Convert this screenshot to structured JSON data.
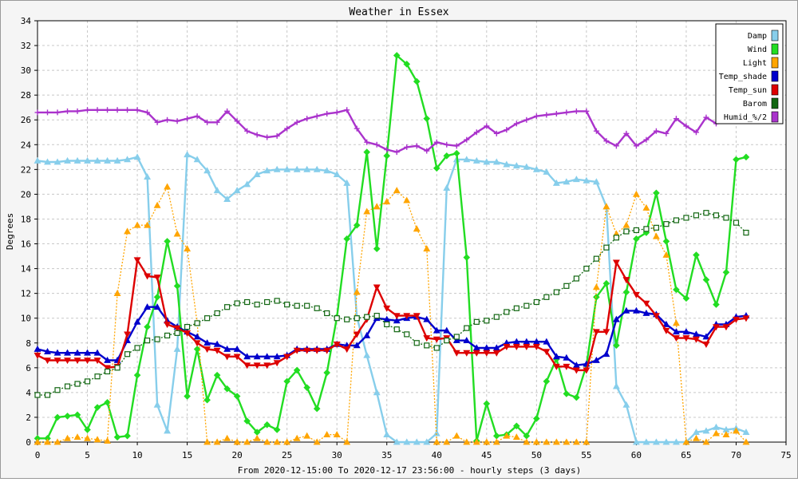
{
  "chart_data": {
    "type": "line",
    "title": "Weather in Essex",
    "ylabel": "Degrees",
    "xlabel": "From 2020-12-15:00 To 2020-12-17 23:56:00 - hourly steps (3 days)",
    "xlim": [
      0,
      75
    ],
    "ylim": [
      0,
      34
    ],
    "xticks": [
      0,
      5,
      10,
      15,
      20,
      25,
      30,
      35,
      40,
      45,
      50,
      55,
      60,
      65,
      70,
      75
    ],
    "yticks": [
      0,
      2,
      4,
      6,
      8,
      10,
      12,
      14,
      16,
      18,
      20,
      22,
      24,
      26,
      28,
      30,
      32,
      34
    ],
    "grid": true,
    "legend_position": "top-right",
    "series": [
      {
        "name": "Damp",
        "color": "#87ceeb",
        "marker": "triangle",
        "line": "solid",
        "values": [
          22.7,
          22.6,
          22.6,
          22.7,
          22.7,
          22.7,
          22.7,
          22.7,
          22.7,
          22.8,
          23.0,
          21.4,
          3.0,
          0.9,
          7.5,
          23.2,
          22.8,
          21.9,
          20.3,
          19.6,
          20.3,
          20.8,
          21.6,
          21.9,
          22.0,
          22.0,
          22.0,
          22.0,
          22.0,
          21.9,
          21.6,
          20.9,
          10.1,
          7.0,
          4.0,
          0.6,
          0.0,
          0.0,
          0.0,
          0.0,
          0.7,
          20.5,
          22.8,
          22.8,
          22.7,
          22.6,
          22.6,
          22.4,
          22.3,
          22.2,
          22.0,
          21.8,
          20.9,
          21.0,
          21.2,
          21.1,
          21.0,
          19.0,
          4.5,
          3.0,
          0.0,
          0.0,
          0.0,
          0.0,
          0.0,
          0.0,
          0.8,
          0.9,
          1.2,
          1.0,
          1.1,
          0.8
        ]
      },
      {
        "name": "Wind",
        "color": "#22dd22",
        "marker": "diamond",
        "line": "solid",
        "values": [
          0.3,
          0.3,
          2.0,
          2.1,
          2.2,
          1.0,
          2.8,
          3.2,
          0.4,
          0.5,
          5.4,
          9.3,
          11.7,
          16.2,
          12.6,
          3.7,
          7.5,
          3.4,
          5.4,
          4.3,
          3.7,
          1.7,
          0.8,
          1.4,
          1.0,
          4.9,
          5.8,
          4.4,
          2.7,
          5.6,
          10.1,
          16.4,
          17.5,
          23.4,
          15.6,
          23.1,
          31.2,
          30.5,
          29.1,
          26.1,
          22.1,
          23.1,
          23.3,
          14.9,
          0.1,
          3.1,
          0.5,
          0.6,
          1.3,
          0.5,
          1.9,
          4.9,
          6.7,
          3.9,
          3.6,
          6.2,
          11.7,
          12.8,
          7.8,
          12.1,
          16.4,
          16.9,
          20.1,
          16.2,
          12.3,
          11.6,
          15.1,
          13.1,
          11.1,
          13.7,
          22.8,
          23.0
        ]
      },
      {
        "name": "Light",
        "color": "#ffa500",
        "marker": "triangle",
        "line": "dotted",
        "values": [
          0.0,
          0.0,
          0.0,
          0.3,
          0.4,
          0.3,
          0.2,
          0.1,
          12.0,
          17.0,
          17.5,
          17.5,
          19.1,
          20.6,
          16.8,
          15.6,
          9.6,
          0.0,
          0.0,
          0.3,
          0.0,
          0.0,
          0.3,
          0.0,
          0.0,
          0.0,
          0.3,
          0.5,
          0.0,
          0.6,
          0.6,
          0.0,
          12.1,
          18.6,
          19.0,
          19.4,
          20.3,
          19.5,
          17.2,
          15.6,
          0.0,
          0.0,
          0.5,
          0.0,
          0.0,
          0.0,
          0.0,
          0.5,
          0.4,
          0.0,
          0.0,
          0.0,
          0.0,
          0.0,
          0.0,
          0.0,
          12.5,
          19.0,
          16.8,
          17.5,
          20.0,
          18.9,
          16.6,
          15.1,
          9.6,
          0.0,
          0.3,
          0.0,
          0.7,
          0.6,
          0.9,
          0.0
        ]
      },
      {
        "name": "Temp_shade",
        "color": "#0000cc",
        "marker": "triangle",
        "line": "solid",
        "values": [
          7.5,
          7.3,
          7.2,
          7.2,
          7.2,
          7.2,
          7.2,
          6.6,
          6.6,
          8.2,
          9.7,
          10.9,
          10.9,
          9.8,
          9.3,
          8.9,
          8.5,
          8.0,
          7.9,
          7.5,
          7.5,
          6.9,
          6.9,
          6.9,
          6.9,
          7.0,
          7.5,
          7.5,
          7.5,
          7.5,
          7.9,
          7.8,
          7.8,
          8.6,
          10.0,
          9.9,
          9.8,
          10.0,
          10.1,
          9.9,
          9.0,
          9.0,
          8.2,
          8.2,
          7.6,
          7.6,
          7.6,
          8.0,
          8.1,
          8.1,
          8.1,
          8.1,
          6.9,
          6.8,
          6.2,
          6.3,
          6.6,
          7.1,
          9.9,
          10.6,
          10.6,
          10.4,
          10.3,
          9.5,
          8.9,
          8.9,
          8.7,
          8.5,
          9.5,
          9.5,
          10.1,
          10.2
        ]
      },
      {
        "name": "Temp_sun",
        "color": "#dd0000",
        "marker": "triangle-down",
        "line": "solid",
        "values": [
          7.0,
          6.6,
          6.6,
          6.6,
          6.6,
          6.6,
          6.6,
          6.0,
          6.1,
          8.7,
          14.7,
          13.4,
          13.3,
          9.5,
          9.2,
          8.8,
          8.0,
          7.5,
          7.4,
          6.9,
          6.9,
          6.2,
          6.2,
          6.2,
          6.4,
          6.9,
          7.4,
          7.4,
          7.4,
          7.4,
          7.9,
          7.5,
          8.7,
          9.9,
          12.5,
          10.8,
          10.2,
          10.2,
          10.2,
          8.4,
          8.3,
          8.4,
          7.2,
          7.2,
          7.2,
          7.2,
          7.2,
          7.7,
          7.7,
          7.7,
          7.7,
          7.3,
          6.1,
          6.1,
          5.8,
          5.8,
          8.9,
          8.9,
          14.5,
          13.1,
          11.9,
          11.2,
          10.2,
          9.0,
          8.4,
          8.4,
          8.3,
          7.9,
          9.3,
          9.3,
          9.9,
          10.0
        ]
      },
      {
        "name": "Barom",
        "color": "#116611",
        "marker": "square",
        "line": "dotted",
        "values": [
          3.8,
          3.8,
          4.2,
          4.5,
          4.7,
          4.9,
          5.3,
          5.7,
          6.0,
          7.1,
          7.6,
          8.2,
          8.3,
          8.6,
          8.8,
          9.3,
          9.6,
          10.0,
          10.4,
          10.9,
          11.2,
          11.3,
          11.1,
          11.3,
          11.4,
          11.1,
          11.0,
          11.0,
          10.8,
          10.4,
          10.0,
          9.9,
          10.0,
          10.1,
          10.2,
          9.5,
          9.1,
          8.7,
          8.0,
          7.8,
          7.6,
          8.2,
          8.5,
          9.2,
          9.7,
          9.8,
          10.1,
          10.5,
          10.8,
          11.0,
          11.3,
          11.7,
          12.1,
          12.6,
          13.2,
          14.0,
          14.8,
          15.7,
          16.5,
          17.0,
          17.1,
          17.2,
          17.3,
          17.6,
          17.9,
          18.1,
          18.3,
          18.5,
          18.3,
          18.1,
          17.7,
          16.9
        ]
      },
      {
        "name": "Humid_%/2",
        "color": "#aa33cc",
        "marker": "plus",
        "line": "solid",
        "values": [
          26.6,
          26.6,
          26.6,
          26.7,
          26.7,
          26.8,
          26.8,
          26.8,
          26.8,
          26.8,
          26.8,
          26.6,
          25.8,
          26.0,
          25.9,
          26.1,
          26.3,
          25.8,
          25.8,
          26.7,
          25.9,
          25.1,
          24.8,
          24.6,
          24.7,
          25.3,
          25.8,
          26.1,
          26.3,
          26.5,
          26.6,
          26.8,
          25.3,
          24.2,
          24.0,
          23.6,
          23.4,
          23.8,
          23.9,
          23.5,
          24.2,
          24.0,
          23.9,
          24.4,
          25.0,
          25.5,
          24.9,
          25.2,
          25.7,
          26.0,
          26.3,
          26.4,
          26.5,
          26.6,
          26.7,
          26.7,
          25.1,
          24.3,
          23.9,
          24.9,
          23.9,
          24.4,
          25.1,
          24.9,
          26.1,
          25.5,
          25.0,
          26.2,
          25.7,
          26.0,
          26.1,
          26.1
        ]
      }
    ]
  }
}
